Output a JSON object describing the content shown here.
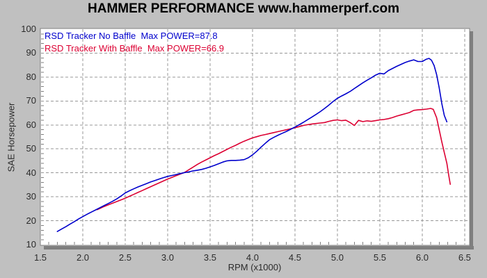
{
  "title": "HAMMER PERFORMANCE www.hammerperf.com",
  "colors": {
    "background": "#c0c0c0",
    "plot_background": "#ffffff",
    "plot_border": "#808080",
    "plot_shadow": "#7f7f7f",
    "grid": "#979797",
    "minor_tick": "#808080",
    "title_text": "#000000",
    "axis_text": "#2b2b2b",
    "series_no_baffle": "#0000cc",
    "series_with_baffle": "#dc0032"
  },
  "chart_data": {
    "type": "line",
    "title": "HAMMER PERFORMANCE www.hammerperf.com",
    "xlabel": "RPM (x1000)",
    "ylabel": "SAE Horsepower",
    "xlim": [
      1.5,
      6.55
    ],
    "ylim": [
      10,
      100
    ],
    "x_ticks": [
      1.5,
      2.0,
      2.5,
      3.0,
      3.5,
      4.0,
      4.5,
      5.0,
      5.5,
      6.0,
      6.5
    ],
    "y_ticks": [
      10,
      20,
      30,
      40,
      50,
      60,
      70,
      80,
      90,
      100
    ],
    "x_minor_step": 0.1,
    "y_minor_step": 2,
    "grid": "dashed",
    "legend_position": "top-left",
    "series": [
      {
        "name": "RSD Tracker No Baffle",
        "legend_label": "RSD Tracker No Baffle  Max POWER=87.8",
        "max_power": 87.8,
        "color": "#0000cc",
        "points": [
          [
            1.7,
            15.5
          ],
          [
            1.75,
            16.5
          ],
          [
            1.8,
            17.5
          ],
          [
            1.85,
            18.6
          ],
          [
            1.9,
            19.6
          ],
          [
            1.95,
            20.7
          ],
          [
            2.0,
            21.7
          ],
          [
            2.05,
            22.7
          ],
          [
            2.1,
            23.6
          ],
          [
            2.15,
            24.5
          ],
          [
            2.2,
            25.4
          ],
          [
            2.25,
            26.3
          ],
          [
            2.3,
            27.2
          ],
          [
            2.35,
            28.1
          ],
          [
            2.4,
            29.1
          ],
          [
            2.45,
            30.3
          ],
          [
            2.5,
            31.6
          ],
          [
            2.55,
            32.5
          ],
          [
            2.6,
            33.3
          ],
          [
            2.65,
            34.1
          ],
          [
            2.7,
            34.8
          ],
          [
            2.75,
            35.5
          ],
          [
            2.8,
            36.2
          ],
          [
            2.85,
            36.8
          ],
          [
            2.9,
            37.4
          ],
          [
            2.95,
            38.0
          ],
          [
            3.0,
            38.5
          ],
          [
            3.05,
            38.9
          ],
          [
            3.1,
            39.3
          ],
          [
            3.15,
            39.7
          ],
          [
            3.2,
            40.1
          ],
          [
            3.25,
            40.4
          ],
          [
            3.3,
            40.8
          ],
          [
            3.35,
            41.1
          ],
          [
            3.4,
            41.4
          ],
          [
            3.45,
            41.9
          ],
          [
            3.5,
            42.5
          ],
          [
            3.55,
            43.1
          ],
          [
            3.6,
            43.8
          ],
          [
            3.65,
            44.5
          ],
          [
            3.7,
            45.0
          ],
          [
            3.75,
            45.2
          ],
          [
            3.8,
            45.2
          ],
          [
            3.85,
            45.3
          ],
          [
            3.9,
            45.5
          ],
          [
            3.95,
            46.3
          ],
          [
            4.0,
            47.5
          ],
          [
            4.05,
            49.0
          ],
          [
            4.1,
            50.7
          ],
          [
            4.15,
            52.3
          ],
          [
            4.2,
            53.8
          ],
          [
            4.25,
            54.8
          ],
          [
            4.3,
            55.7
          ],
          [
            4.35,
            56.5
          ],
          [
            4.4,
            57.3
          ],
          [
            4.45,
            58.2
          ],
          [
            4.5,
            59.1
          ],
          [
            4.55,
            60.1
          ],
          [
            4.6,
            61.1
          ],
          [
            4.65,
            62.2
          ],
          [
            4.7,
            63.3
          ],
          [
            4.75,
            64.4
          ],
          [
            4.8,
            65.6
          ],
          [
            4.85,
            66.9
          ],
          [
            4.9,
            68.3
          ],
          [
            4.95,
            69.8
          ],
          [
            5.0,
            71.1
          ],
          [
            5.05,
            72.1
          ],
          [
            5.1,
            73.0
          ],
          [
            5.15,
            74.0
          ],
          [
            5.2,
            75.2
          ],
          [
            5.25,
            76.4
          ],
          [
            5.3,
            77.6
          ],
          [
            5.35,
            78.7
          ],
          [
            5.4,
            79.7
          ],
          [
            5.45,
            80.8
          ],
          [
            5.5,
            81.6
          ],
          [
            5.55,
            81.3
          ],
          [
            5.6,
            82.7
          ],
          [
            5.65,
            83.6
          ],
          [
            5.7,
            84.5
          ],
          [
            5.75,
            85.3
          ],
          [
            5.8,
            86.1
          ],
          [
            5.85,
            86.7
          ],
          [
            5.9,
            87.2
          ],
          [
            5.95,
            86.5
          ],
          [
            6.0,
            86.5
          ],
          [
            6.05,
            87.5
          ],
          [
            6.08,
            87.8
          ],
          [
            6.11,
            87.0
          ],
          [
            6.14,
            84.8
          ],
          [
            6.17,
            81.0
          ],
          [
            6.2,
            75.5
          ],
          [
            6.23,
            69.0
          ],
          [
            6.26,
            64.0
          ],
          [
            6.29,
            61.3
          ]
        ]
      },
      {
        "name": "RSD Tracker With Baffle",
        "legend_label": "RSD Tracker With Baffle  Max POWER=66.9",
        "max_power": 66.9,
        "color": "#dc0032",
        "points": [
          [
            2.17,
            24.6
          ],
          [
            2.2,
            25.1
          ],
          [
            2.25,
            25.9
          ],
          [
            2.3,
            26.6
          ],
          [
            2.35,
            27.3
          ],
          [
            2.4,
            28.0
          ],
          [
            2.45,
            28.7
          ],
          [
            2.5,
            29.4
          ],
          [
            2.55,
            30.2
          ],
          [
            2.6,
            31.0
          ],
          [
            2.65,
            31.8
          ],
          [
            2.7,
            32.6
          ],
          [
            2.75,
            33.4
          ],
          [
            2.8,
            34.2
          ],
          [
            2.85,
            35.0
          ],
          [
            2.9,
            35.8
          ],
          [
            2.95,
            36.6
          ],
          [
            3.0,
            37.4
          ],
          [
            3.05,
            38.1
          ],
          [
            3.1,
            38.8
          ],
          [
            3.15,
            39.5
          ],
          [
            3.2,
            40.2
          ],
          [
            3.25,
            41.3
          ],
          [
            3.3,
            42.4
          ],
          [
            3.35,
            43.5
          ],
          [
            3.4,
            44.5
          ],
          [
            3.45,
            45.4
          ],
          [
            3.5,
            46.3
          ],
          [
            3.55,
            47.2
          ],
          [
            3.6,
            48.0
          ],
          [
            3.65,
            48.9
          ],
          [
            3.7,
            49.8
          ],
          [
            3.75,
            50.7
          ],
          [
            3.8,
            51.5
          ],
          [
            3.85,
            52.4
          ],
          [
            3.9,
            53.2
          ],
          [
            3.95,
            53.9
          ],
          [
            4.0,
            54.6
          ],
          [
            4.05,
            55.1
          ],
          [
            4.1,
            55.6
          ],
          [
            4.15,
            56.0
          ],
          [
            4.2,
            56.4
          ],
          [
            4.25,
            56.8
          ],
          [
            4.3,
            57.2
          ],
          [
            4.35,
            57.6
          ],
          [
            4.4,
            58.0
          ],
          [
            4.45,
            58.4
          ],
          [
            4.5,
            58.8
          ],
          [
            4.55,
            59.3
          ],
          [
            4.6,
            59.8
          ],
          [
            4.65,
            60.1
          ],
          [
            4.7,
            60.4
          ],
          [
            4.75,
            60.6
          ],
          [
            4.8,
            60.8
          ],
          [
            4.85,
            61.0
          ],
          [
            4.9,
            61.5
          ],
          [
            4.95,
            61.9
          ],
          [
            5.0,
            62.1
          ],
          [
            5.05,
            61.8
          ],
          [
            5.1,
            62.0
          ],
          [
            5.15,
            61.0
          ],
          [
            5.2,
            59.8
          ],
          [
            5.25,
            61.9
          ],
          [
            5.3,
            61.4
          ],
          [
            5.35,
            61.7
          ],
          [
            5.4,
            61.5
          ],
          [
            5.45,
            61.8
          ],
          [
            5.5,
            62.1
          ],
          [
            5.55,
            62.3
          ],
          [
            5.6,
            62.6
          ],
          [
            5.65,
            63.1
          ],
          [
            5.7,
            63.7
          ],
          [
            5.75,
            64.2
          ],
          [
            5.8,
            64.7
          ],
          [
            5.85,
            65.2
          ],
          [
            5.9,
            66.1
          ],
          [
            5.95,
            66.3
          ],
          [
            6.0,
            66.4
          ],
          [
            6.05,
            66.6
          ],
          [
            6.1,
            66.9
          ],
          [
            6.13,
            66.5
          ],
          [
            6.17,
            63.0
          ],
          [
            6.2,
            58.0
          ],
          [
            6.23,
            53.0
          ],
          [
            6.26,
            48.5
          ],
          [
            6.29,
            44.0
          ],
          [
            6.31,
            39.5
          ],
          [
            6.33,
            35.2
          ]
        ]
      }
    ]
  }
}
